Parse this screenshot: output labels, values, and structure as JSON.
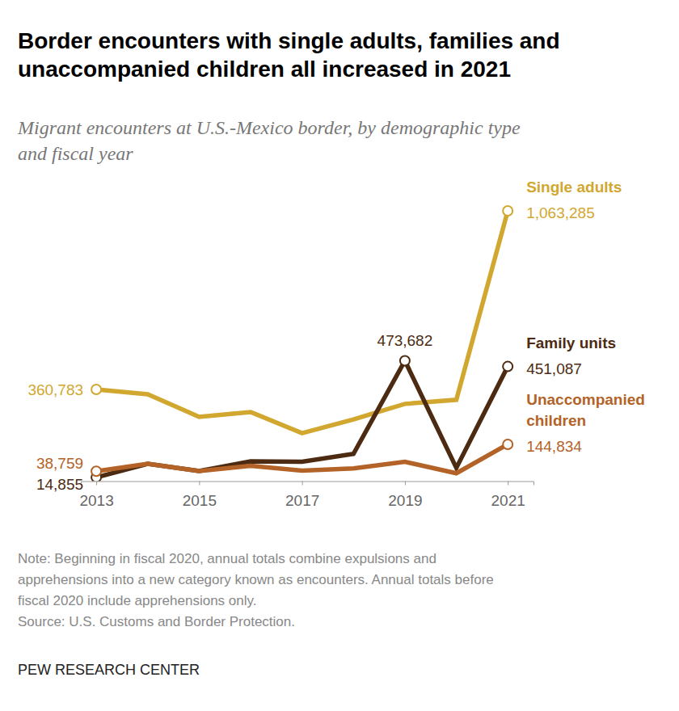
{
  "chart_data": {
    "type": "line",
    "title": [
      "Border encounters with single adults, families and",
      "unaccompanied children all increased in 2021"
    ],
    "subtitle": [
      "Migrant encounters at U.S.-Mexico border, by demographic type",
      "and fiscal year"
    ],
    "x": [
      2013,
      2014,
      2015,
      2016,
      2017,
      2018,
      2019,
      2020,
      2021
    ],
    "xlim": [
      2012.7,
      2021.5
    ],
    "xticks": [
      2013,
      2015,
      2017,
      2019,
      2021
    ],
    "ylim": [
      0,
      1130000
    ],
    "tick_labels": "x",
    "series": [
      {
        "name": "Single adults",
        "color": "#d1a730",
        "marker": "circle",
        "values": [
          360783,
          342000,
          253000,
          272000,
          189000,
          243000,
          304000,
          320000,
          1063285
        ],
        "value_labels": [
          "360,783",
          null,
          null,
          null,
          null,
          null,
          null,
          null,
          "1,063,285"
        ]
      },
      {
        "name": "Family units",
        "color": "#4d2b12",
        "marker": "circle",
        "values": [
          14855,
          68000,
          40000,
          78000,
          76000,
          107000,
          473682,
          52000,
          451087
        ],
        "value_labels": [
          "14,855",
          null,
          null,
          null,
          null,
          null,
          "473,682",
          null,
          "451,087"
        ]
      },
      {
        "name": "Unaccompanied children",
        "color": "#b36327",
        "marker": "circle",
        "values": [
          38759,
          68000,
          40000,
          60000,
          41000,
          50000,
          76000,
          31000,
          144834
        ],
        "value_labels": [
          "38,759",
          null,
          null,
          null,
          null,
          null,
          null,
          null,
          "144,834"
        ]
      }
    ],
    "note": [
      "Note: Beginning in fiscal 2020, annual totals combine expulsions and",
      "apprehensions into a new category known as encounters. Annual totals before",
      "fiscal 2020 include apprehensions only."
    ],
    "source": "Source: U.S. Customs and Border Protection.",
    "credit": "PEW RESEARCH CENTER"
  }
}
